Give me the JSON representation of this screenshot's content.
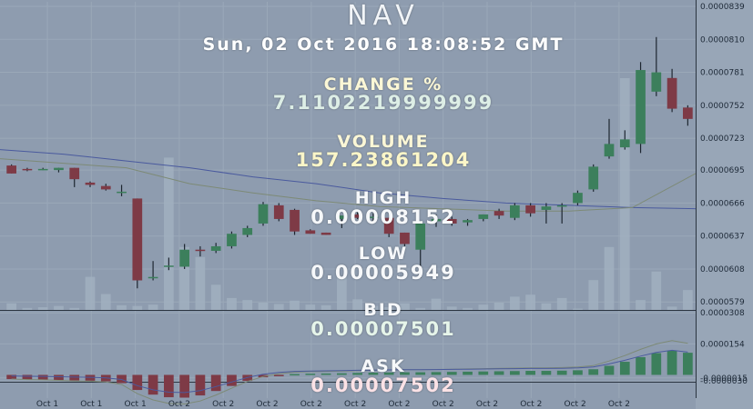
{
  "chart_data": {
    "type": "candlestick",
    "title": "NAV",
    "x_tick_labels": [
      "Oct 1",
      "Oct 1",
      "Oct 1",
      "Oct 2",
      "Oct 2",
      "Oct 2",
      "Oct 2",
      "Oct 2",
      "Oct 2",
      "Oct 2",
      "Oct 2",
      "Oct 2",
      "Oct 2",
      "Oct 2"
    ],
    "price_axis": {
      "ticks": [
        "0.0000839",
        "0.0000810",
        "0.0000781",
        "0.0000752",
        "0.0000723",
        "0.0000695",
        "0.0000666",
        "0.0000637",
        "0.0000608",
        "0.0000579"
      ],
      "ylim": [
        5.72e-05,
        8.43e-05
      ]
    },
    "oscillator_axis": {
      "ticks": [
        "0.0000308",
        "0.0000154",
        "-0.0000015",
        "-0.0000030"
      ],
      "ylim": [
        -3.4e-06,
        3.18e-05
      ]
    },
    "candles": [
      {
        "o": 6.99e-05,
        "h": 7e-05,
        "l": 6.92e-05,
        "c": 6.92e-05
      },
      {
        "o": 6.96e-05,
        "h": 6.97e-05,
        "l": 6.94e-05,
        "c": 6.95e-05
      },
      {
        "o": 6.96e-05,
        "h": 6.97e-05,
        "l": 6.95e-05,
        "c": 6.96e-05
      },
      {
        "o": 6.95e-05,
        "h": 6.97e-05,
        "l": 6.93e-05,
        "c": 6.97e-05
      },
      {
        "o": 6.97e-05,
        "h": 6.97e-05,
        "l": 6.8e-05,
        "c": 6.87e-05
      },
      {
        "o": 6.84e-05,
        "h": 6.85e-05,
        "l": 6.8e-05,
        "c": 6.82e-05
      },
      {
        "o": 6.81e-05,
        "h": 6.83e-05,
        "l": 6.77e-05,
        "c": 6.78e-05
      },
      {
        "o": 6.75e-05,
        "h": 6.82e-05,
        "l": 6.72e-05,
        "c": 6.76e-05
      },
      {
        "o": 6.7e-05,
        "h": 6.7e-05,
        "l": 5.91e-05,
        "c": 5.98e-05
      },
      {
        "o": 6e-05,
        "h": 6.15e-05,
        "l": 5.98e-05,
        "c": 6.01e-05
      },
      {
        "o": 6.1e-05,
        "h": 6.18e-05,
        "l": 6.07e-05,
        "c": 6.11e-05
      },
      {
        "o": 6.1e-05,
        "h": 6.3e-05,
        "l": 6.08e-05,
        "c": 6.25e-05
      },
      {
        "o": 6.25e-05,
        "h": 6.28e-05,
        "l": 6.19e-05,
        "c": 6.24e-05
      },
      {
        "o": 6.24e-05,
        "h": 6.31e-05,
        "l": 6.22e-05,
        "c": 6.28e-05
      },
      {
        "o": 6.28e-05,
        "h": 6.41e-05,
        "l": 6.26e-05,
        "c": 6.39e-05
      },
      {
        "o": 6.38e-05,
        "h": 6.46e-05,
        "l": 6.36e-05,
        "c": 6.44e-05
      },
      {
        "o": 6.48e-05,
        "h": 6.67e-05,
        "l": 6.46e-05,
        "c": 6.65e-05
      },
      {
        "o": 6.64e-05,
        "h": 6.66e-05,
        "l": 6.5e-05,
        "c": 6.52e-05
      },
      {
        "o": 6.6e-05,
        "h": 6.61e-05,
        "l": 6.38e-05,
        "c": 6.41e-05
      },
      {
        "o": 6.42e-05,
        "h": 6.43e-05,
        "l": 6.39e-05,
        "c": 6.39e-05
      },
      {
        "o": 6.4e-05,
        "h": 6.4e-05,
        "l": 6.38e-05,
        "c": 6.38e-05
      },
      {
        "o": 6.52e-05,
        "h": 6.55e-05,
        "l": 6.44e-05,
        "c": 6.55e-05
      },
      {
        "o": 6.56e-05,
        "h": 6.58e-05,
        "l": 6.52e-05,
        "c": 6.53e-05
      },
      {
        "o": 6.53e-05,
        "h": 6.57e-05,
        "l": 6.5e-05,
        "c": 6.54e-05
      },
      {
        "o": 6.53e-05,
        "h": 6.53e-05,
        "l": 6.36e-05,
        "c": 6.39e-05
      },
      {
        "o": 6.4e-05,
        "h": 6.4e-05,
        "l": 6.28e-05,
        "c": 6.3e-05
      },
      {
        "o": 6.25e-05,
        "h": 6.5e-05,
        "l": 6e-05,
        "c": 6.48e-05
      },
      {
        "o": 6.5e-05,
        "h": 6.56e-05,
        "l": 6.45e-05,
        "c": 6.52e-05
      },
      {
        "o": 6.52e-05,
        "h": 6.54e-05,
        "l": 6.46e-05,
        "c": 6.48e-05
      },
      {
        "o": 6.49e-05,
        "h": 6.52e-05,
        "l": 6.46e-05,
        "c": 6.51e-05
      },
      {
        "o": 6.52e-05,
        "h": 6.56e-05,
        "l": 6.5e-05,
        "c": 6.56e-05
      },
      {
        "o": 6.59e-05,
        "h": 6.61e-05,
        "l": 6.52e-05,
        "c": 6.55e-05
      },
      {
        "o": 6.53e-05,
        "h": 6.66e-05,
        "l": 6.51e-05,
        "c": 6.64e-05
      },
      {
        "o": 6.64e-05,
        "h": 6.66e-05,
        "l": 6.54e-05,
        "c": 6.57e-05
      },
      {
        "o": 6.6e-05,
        "h": 6.66e-05,
        "l": 6.48e-05,
        "c": 6.63e-05
      },
      {
        "o": 6.63e-05,
        "h": 6.66e-05,
        "l": 6.48e-05,
        "c": 6.64e-05
      },
      {
        "o": 6.66e-05,
        "h": 6.77e-05,
        "l": 6.64e-05,
        "c": 6.75e-05
      },
      {
        "o": 6.78e-05,
        "h": 7e-05,
        "l": 6.76e-05,
        "c": 6.98e-05
      },
      {
        "o": 7.07e-05,
        "h": 7.4e-05,
        "l": 7.05e-05,
        "c": 7.18e-05
      },
      {
        "o": 7.15e-05,
        "h": 7.3e-05,
        "l": 7.13e-05,
        "c": 7.22e-05
      },
      {
        "o": 7.18e-05,
        "h": 7.9e-05,
        "l": 7.1e-05,
        "c": 7.83e-05
      },
      {
        "o": 7.64e-05,
        "h": 8.12e-05,
        "l": 7.6e-05,
        "c": 7.81e-05
      },
      {
        "o": 7.76e-05,
        "h": 7.84e-05,
        "l": 7.46e-05,
        "c": 7.49e-05
      },
      {
        "o": 7.5e-05,
        "h": 7.52e-05,
        "l": 7.34e-05,
        "c": 7.4e-05
      }
    ],
    "volume": [
      10,
      3,
      4,
      6,
      3,
      50,
      24,
      7,
      6,
      8,
      230,
      95,
      80,
      38,
      18,
      15,
      11,
      9,
      14,
      8,
      7,
      50,
      16,
      6,
      4,
      10,
      3,
      17,
      5,
      3,
      8,
      11,
      20,
      23,
      10,
      18,
      2,
      45,
      95,
      350,
      15,
      58,
      5,
      30
    ],
    "volume_ymax": 350,
    "moving_averages": [
      {
        "color": "#4a5a9e",
        "values": [
          7.13e-05,
          7.09e-05,
          7.03e-05,
          6.97e-05,
          6.89e-05,
          6.83e-05,
          6.75e-05,
          6.7e-05,
          6.66e-05,
          6.64e-05,
          6.62e-05,
          6.61e-05
        ]
      },
      {
        "color": "#7d8a76",
        "values": [
          7.05e-05,
          7.01e-05,
          6.97e-05,
          6.83e-05,
          6.75e-05,
          6.68e-05,
          6.63e-05,
          6.61e-05,
          6.59e-05,
          6.59e-05,
          6.62e-05,
          6.92e-05
        ]
      }
    ],
    "histogram": [
      -2.1e-06,
      -2.3e-06,
      -2.4e-06,
      -2.6e-06,
      -2.8e-06,
      -2.9e-06,
      -3.2e-06,
      -4.1e-06,
      -7.5e-06,
      -9.8e-06,
      -1.11e-05,
      -1.13e-05,
      -1.02e-05,
      -8e-06,
      -5.5e-06,
      -3e-06,
      -1.2e-06,
      -2e-07,
      4e-07,
      6e-07,
      7e-07,
      8e-07,
      1e-06,
      1.1e-06,
      1.2e-06,
      1.3e-06,
      1.3e-06,
      1.4e-06,
      1.5e-06,
      1.6e-06,
      1.7e-06,
      1.8e-06,
      1.9e-06,
      2e-06,
      2e-06,
      2.1e-06,
      2.3e-06,
      2.8e-06,
      4.5e-06,
      6.5e-06,
      8.8e-06,
      1.08e-05,
      1.2e-05,
      1.1e-05
    ]
  },
  "overlay": {
    "title": "NAV",
    "datetime": "Sun, 02 Oct 2016 18:08:52 GMT",
    "change_label": "CHANGE %",
    "change_value": "7.1102219999999",
    "volume_label": "VOLUME",
    "volume_value": "157.23861204",
    "high_label": "HIGH",
    "high_value": "0.00008152",
    "low_label": "LOW",
    "low_value": "0.00005949",
    "bid_label": "BID",
    "bid_value": "0.00007501",
    "ask_label": "ASK",
    "ask_value": "0.00007502"
  },
  "colors": {
    "up": "#3c7f5c",
    "down": "#7e3a46",
    "volume": "#a1b0bf",
    "axis_text": "#1e2a38"
  }
}
